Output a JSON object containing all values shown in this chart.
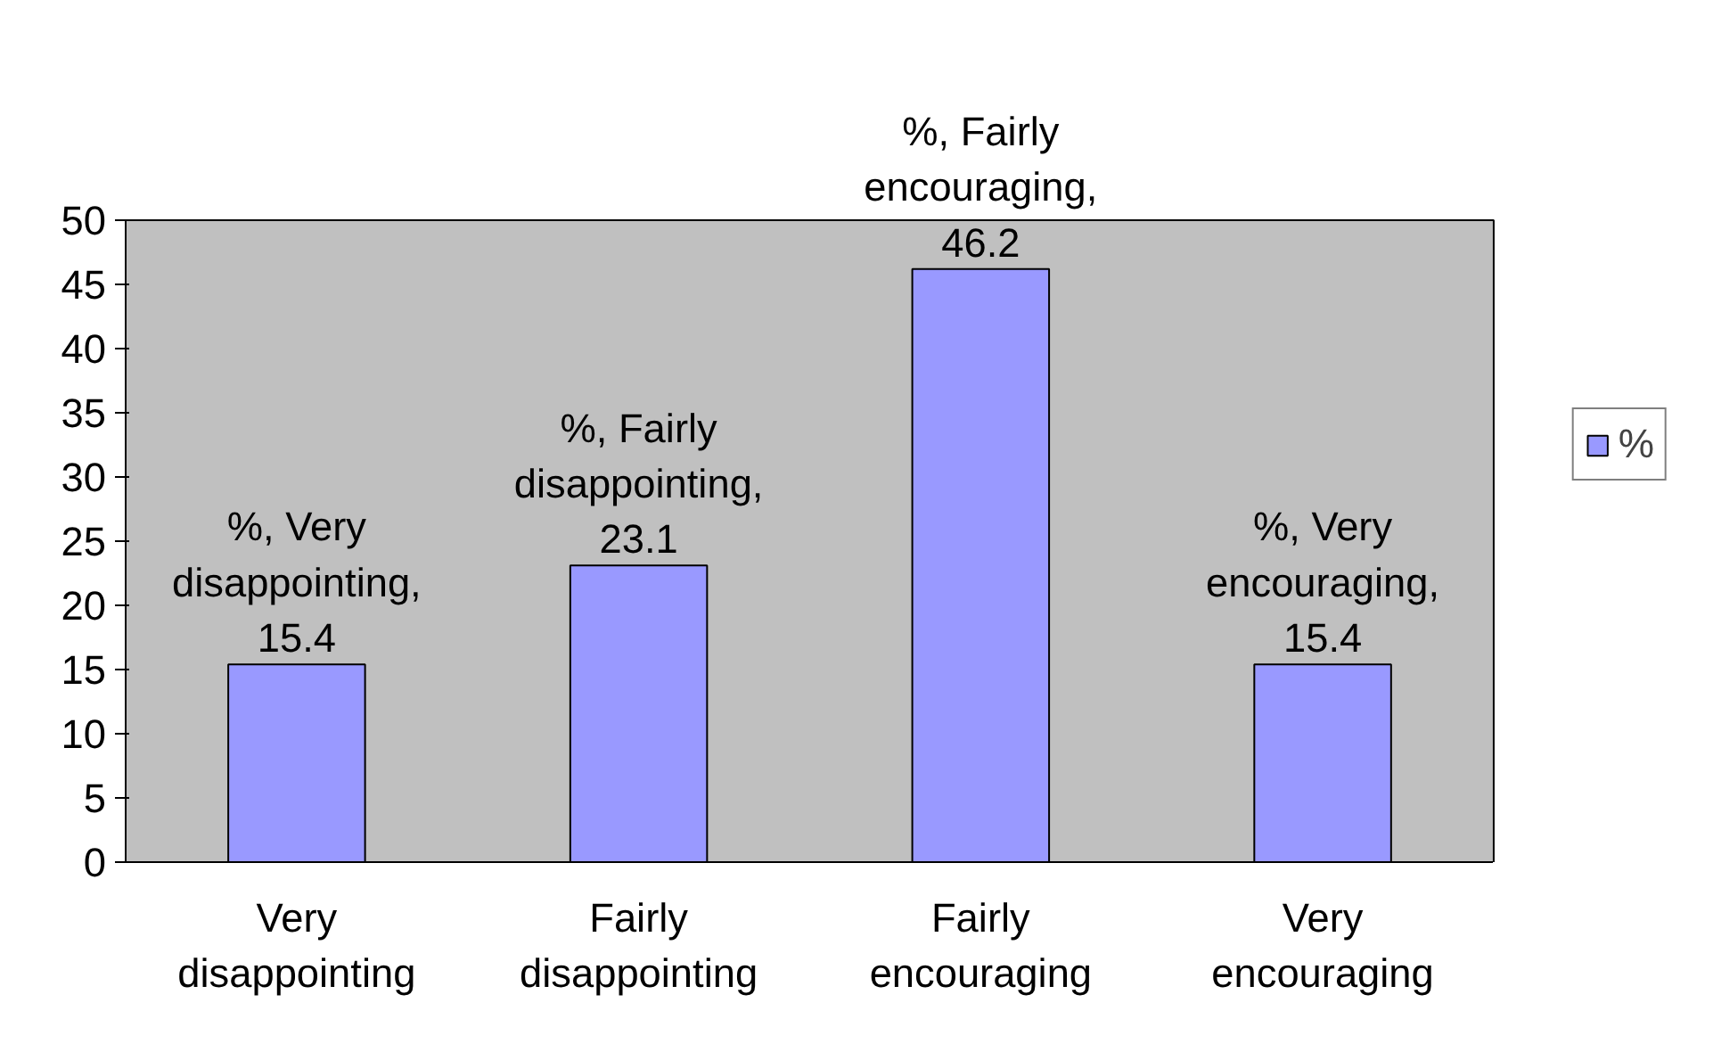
{
  "chart_data": {
    "type": "bar",
    "categories": [
      "Very disappointing",
      "Fairly disappointing",
      "Fairly encouraging",
      "Very encouraging"
    ],
    "series": [
      {
        "name": "%",
        "color": "#9999ff",
        "values": [
          15.4,
          23.1,
          46.2,
          15.4
        ],
        "value_labels": [
          "%, Very disappointing, 15.4",
          "%, Fairly disappointing, 23.1",
          "%, Fairly encouraging, 46.2",
          "%, Very encouraging, 15.4"
        ]
      }
    ],
    "ylim": [
      0,
      50
    ],
    "yticks": [
      0,
      5,
      10,
      15,
      20,
      25,
      30,
      35,
      40,
      45,
      50
    ],
    "legend": "right"
  }
}
